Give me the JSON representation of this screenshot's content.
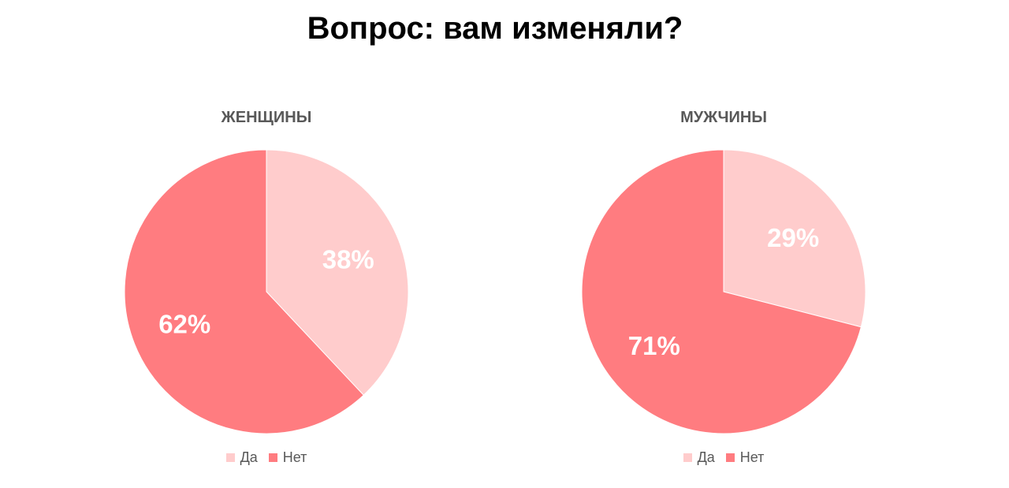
{
  "page": {
    "title": "Вопрос: вам изменяли?"
  },
  "colors": {
    "yes": "#FFCCCC",
    "no": "#FF7C80"
  },
  "chart_data": [
    {
      "type": "pie",
      "title": "ЖЕНЩИНЫ",
      "categories": [
        "Да",
        "Нет"
      ],
      "values": [
        38,
        62
      ],
      "labels": [
        "38%",
        "62%"
      ],
      "legend": "bottom"
    },
    {
      "type": "pie",
      "title": "МУЖЧИНЫ",
      "categories": [
        "Да",
        "Нет"
      ],
      "values": [
        29,
        71
      ],
      "labels": [
        "29%",
        "71%"
      ],
      "legend": "bottom"
    }
  ]
}
